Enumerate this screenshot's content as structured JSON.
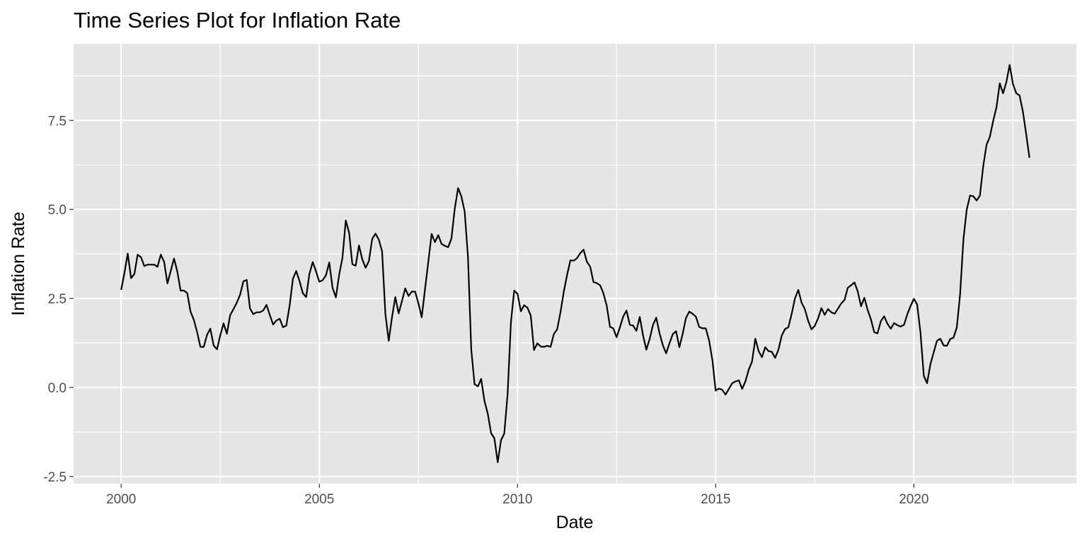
{
  "chart_data": {
    "type": "line",
    "title": "Time Series Plot for Inflation Rate",
    "xlabel": "Date",
    "ylabel": "Inflation Rate",
    "xlim": [
      1998.8,
      2024.1
    ],
    "ylim": [
      -2.7,
      9.65
    ],
    "x_ticks": [
      2000,
      2005,
      2010,
      2015,
      2020
    ],
    "x_tick_labels": [
      "2000",
      "2005",
      "2010",
      "2015",
      "2020"
    ],
    "y_ticks": [
      -2.5,
      0.0,
      2.5,
      5.0,
      7.5
    ],
    "y_tick_labels": [
      "-2.5",
      "0.0",
      "2.5",
      "5.0",
      "7.5"
    ],
    "grid": true,
    "legend": "none",
    "colors": {
      "panel": "#e5e5e5",
      "grid": "#ffffff",
      "line": "#000000",
      "tick_text": "#4d4d4d"
    },
    "series": [
      {
        "x": [
          "2000-01",
          "2000-02",
          "2000-03",
          "2000-04",
          "2000-05",
          "2000-06",
          "2000-07",
          "2000-08",
          "2000-09",
          "2000-10",
          "2000-11",
          "2000-12",
          "2001-01",
          "2001-02",
          "2001-03",
          "2001-04",
          "2001-05",
          "2001-06",
          "2001-07",
          "2001-08",
          "2001-09",
          "2001-10",
          "2001-11",
          "2001-12",
          "2002-01",
          "2002-02",
          "2002-03",
          "2002-04",
          "2002-05",
          "2002-06",
          "2002-07",
          "2002-08",
          "2002-09",
          "2002-10",
          "2002-11",
          "2002-12",
          "2003-01",
          "2003-02",
          "2003-03",
          "2003-04",
          "2003-05",
          "2003-06",
          "2003-07",
          "2003-08",
          "2003-09",
          "2003-10",
          "2003-11",
          "2003-12",
          "2004-01",
          "2004-02",
          "2004-03",
          "2004-04",
          "2004-05",
          "2004-06",
          "2004-07",
          "2004-08",
          "2004-09",
          "2004-10",
          "2004-11",
          "2004-12",
          "2005-01",
          "2005-02",
          "2005-03",
          "2005-04",
          "2005-05",
          "2005-06",
          "2005-07",
          "2005-08",
          "2005-09",
          "2005-10",
          "2005-11",
          "2005-12",
          "2006-01",
          "2006-02",
          "2006-03",
          "2006-04",
          "2006-05",
          "2006-06",
          "2006-07",
          "2006-08",
          "2006-09",
          "2006-10",
          "2006-11",
          "2006-12",
          "2007-01",
          "2007-02",
          "2007-03",
          "2007-04",
          "2007-05",
          "2007-06",
          "2007-07",
          "2007-08",
          "2007-09",
          "2007-10",
          "2007-11",
          "2007-12",
          "2008-01",
          "2008-02",
          "2008-03",
          "2008-04",
          "2008-05",
          "2008-06",
          "2008-07",
          "2008-08",
          "2008-09",
          "2008-10",
          "2008-11",
          "2008-12",
          "2009-01",
          "2009-02",
          "2009-03",
          "2009-04",
          "2009-05",
          "2009-06",
          "2009-07",
          "2009-08",
          "2009-09",
          "2009-10",
          "2009-11",
          "2009-12",
          "2010-01",
          "2010-02",
          "2010-03",
          "2010-04",
          "2010-05",
          "2010-06",
          "2010-07",
          "2010-08",
          "2010-09",
          "2010-10",
          "2010-11",
          "2010-12",
          "2011-01",
          "2011-02",
          "2011-03",
          "2011-04",
          "2011-05",
          "2011-06",
          "2011-07",
          "2011-08",
          "2011-09",
          "2011-10",
          "2011-11",
          "2011-12",
          "2012-01",
          "2012-02",
          "2012-03",
          "2012-04",
          "2012-05",
          "2012-06",
          "2012-07",
          "2012-08",
          "2012-09",
          "2012-10",
          "2012-11",
          "2012-12",
          "2013-01",
          "2013-02",
          "2013-03",
          "2013-04",
          "2013-05",
          "2013-06",
          "2013-07",
          "2013-08",
          "2013-09",
          "2013-10",
          "2013-11",
          "2013-12",
          "2014-01",
          "2014-02",
          "2014-03",
          "2014-04",
          "2014-05",
          "2014-06",
          "2014-07",
          "2014-08",
          "2014-09",
          "2014-10",
          "2014-11",
          "2014-12",
          "2015-01",
          "2015-02",
          "2015-03",
          "2015-04",
          "2015-05",
          "2015-06",
          "2015-07",
          "2015-08",
          "2015-09",
          "2015-10",
          "2015-11",
          "2015-12",
          "2016-01",
          "2016-02",
          "2016-03",
          "2016-04",
          "2016-05",
          "2016-06",
          "2016-07",
          "2016-08",
          "2016-09",
          "2016-10",
          "2016-11",
          "2016-12",
          "2017-01",
          "2017-02",
          "2017-03",
          "2017-04",
          "2017-05",
          "2017-06",
          "2017-07",
          "2017-08",
          "2017-09",
          "2017-10",
          "2017-11",
          "2017-12",
          "2018-01",
          "2018-02",
          "2018-03",
          "2018-04",
          "2018-05",
          "2018-06",
          "2018-07",
          "2018-08",
          "2018-09",
          "2018-10",
          "2018-11",
          "2018-12",
          "2019-01",
          "2019-02",
          "2019-03",
          "2019-04",
          "2019-05",
          "2019-06",
          "2019-07",
          "2019-08",
          "2019-09",
          "2019-10",
          "2019-11",
          "2019-12",
          "2020-01",
          "2020-02",
          "2020-03",
          "2020-04",
          "2020-05",
          "2020-06",
          "2020-07",
          "2020-08",
          "2020-09",
          "2020-10",
          "2020-11",
          "2020-12",
          "2021-01",
          "2021-02",
          "2021-03",
          "2021-04",
          "2021-05",
          "2021-06",
          "2021-07",
          "2021-08",
          "2021-09",
          "2021-10",
          "2021-11",
          "2021-12",
          "2022-01",
          "2022-02",
          "2022-03",
          "2022-04",
          "2022-05",
          "2022-06",
          "2022-07",
          "2022-08",
          "2022-09",
          "2022-10",
          "2022-11",
          "2022-12"
        ],
        "values": [
          2.74,
          3.22,
          3.76,
          3.07,
          3.19,
          3.73,
          3.66,
          3.41,
          3.45,
          3.45,
          3.45,
          3.39,
          3.73,
          3.53,
          2.92,
          3.27,
          3.62,
          3.25,
          2.72,
          2.72,
          2.65,
          2.13,
          1.9,
          1.55,
          1.14,
          1.14,
          1.48,
          1.65,
          1.18,
          1.07,
          1.46,
          1.8,
          1.51,
          2.03,
          2.2,
          2.38,
          2.6,
          2.98,
          3.02,
          2.22,
          2.06,
          2.11,
          2.11,
          2.16,
          2.32,
          2.04,
          1.77,
          1.88,
          1.93,
          1.69,
          1.74,
          2.29,
          3.05,
          3.27,
          2.99,
          2.65,
          2.54,
          3.19,
          3.52,
          3.26,
          2.97,
          3.01,
          3.15,
          3.51,
          2.8,
          2.53,
          3.17,
          3.64,
          4.69,
          4.35,
          3.46,
          3.42,
          3.99,
          3.6,
          3.36,
          3.55,
          4.17,
          4.32,
          4.15,
          3.82,
          2.06,
          1.31,
          1.97,
          2.54,
          2.08,
          2.42,
          2.78,
          2.57,
          2.69,
          2.69,
          2.36,
          1.97,
          2.76,
          3.54,
          4.31,
          4.08,
          4.28,
          4.03,
          3.98,
          3.94,
          4.18,
          5.02,
          5.6,
          5.37,
          4.94,
          3.66,
          1.07,
          0.09,
          0.03,
          0.24,
          -0.38,
          -0.74,
          -1.28,
          -1.43,
          -2.1,
          -1.48,
          -1.29,
          -0.18,
          1.84,
          2.72,
          2.63,
          2.14,
          2.31,
          2.24,
          2.02,
          1.05,
          1.24,
          1.15,
          1.14,
          1.17,
          1.14,
          1.5,
          1.63,
          2.11,
          2.68,
          3.16,
          3.57,
          3.56,
          3.63,
          3.77,
          3.87,
          3.53,
          3.39,
          2.96,
          2.93,
          2.87,
          2.65,
          2.3,
          1.7,
          1.66,
          1.41,
          1.69,
          1.99,
          2.16,
          1.76,
          1.74,
          1.59,
          1.98,
          1.47,
          1.06,
          1.36,
          1.75,
          1.96,
          1.52,
          1.18,
          0.96,
          1.24,
          1.5,
          1.58,
          1.13,
          1.51,
          1.95,
          2.13,
          2.07,
          1.99,
          1.7,
          1.66,
          1.66,
          1.32,
          0.76,
          -0.09,
          -0.03,
          -0.07,
          -0.2,
          -0.04,
          0.12,
          0.17,
          0.2,
          -0.04,
          0.17,
          0.5,
          0.73,
          1.37,
          1.02,
          0.85,
          1.13,
          1.02,
          1.0,
          0.83,
          1.06,
          1.46,
          1.64,
          1.69,
          2.07,
          2.5,
          2.74,
          2.38,
          2.2,
          1.87,
          1.63,
          1.73,
          1.94,
          2.23,
          2.04,
          2.2,
          2.11,
          2.07,
          2.21,
          2.36,
          2.46,
          2.8,
          2.87,
          2.95,
          2.7,
          2.28,
          2.52,
          2.18,
          1.91,
          1.55,
          1.52,
          1.86,
          2.0,
          1.79,
          1.65,
          1.81,
          1.75,
          1.71,
          1.76,
          2.05,
          2.29,
          2.49,
          2.33,
          1.54,
          0.33,
          0.12,
          0.65,
          0.99,
          1.31,
          1.37,
          1.18,
          1.17,
          1.36,
          1.4,
          1.68,
          2.62,
          4.16,
          4.99,
          5.39,
          5.37,
          5.25,
          5.39,
          6.22,
          6.81,
          7.04,
          7.48,
          7.87,
          8.54,
          8.26,
          8.58,
          9.06,
          8.52,
          8.26,
          8.2,
          7.75,
          7.11,
          6.45
        ]
      }
    ]
  }
}
